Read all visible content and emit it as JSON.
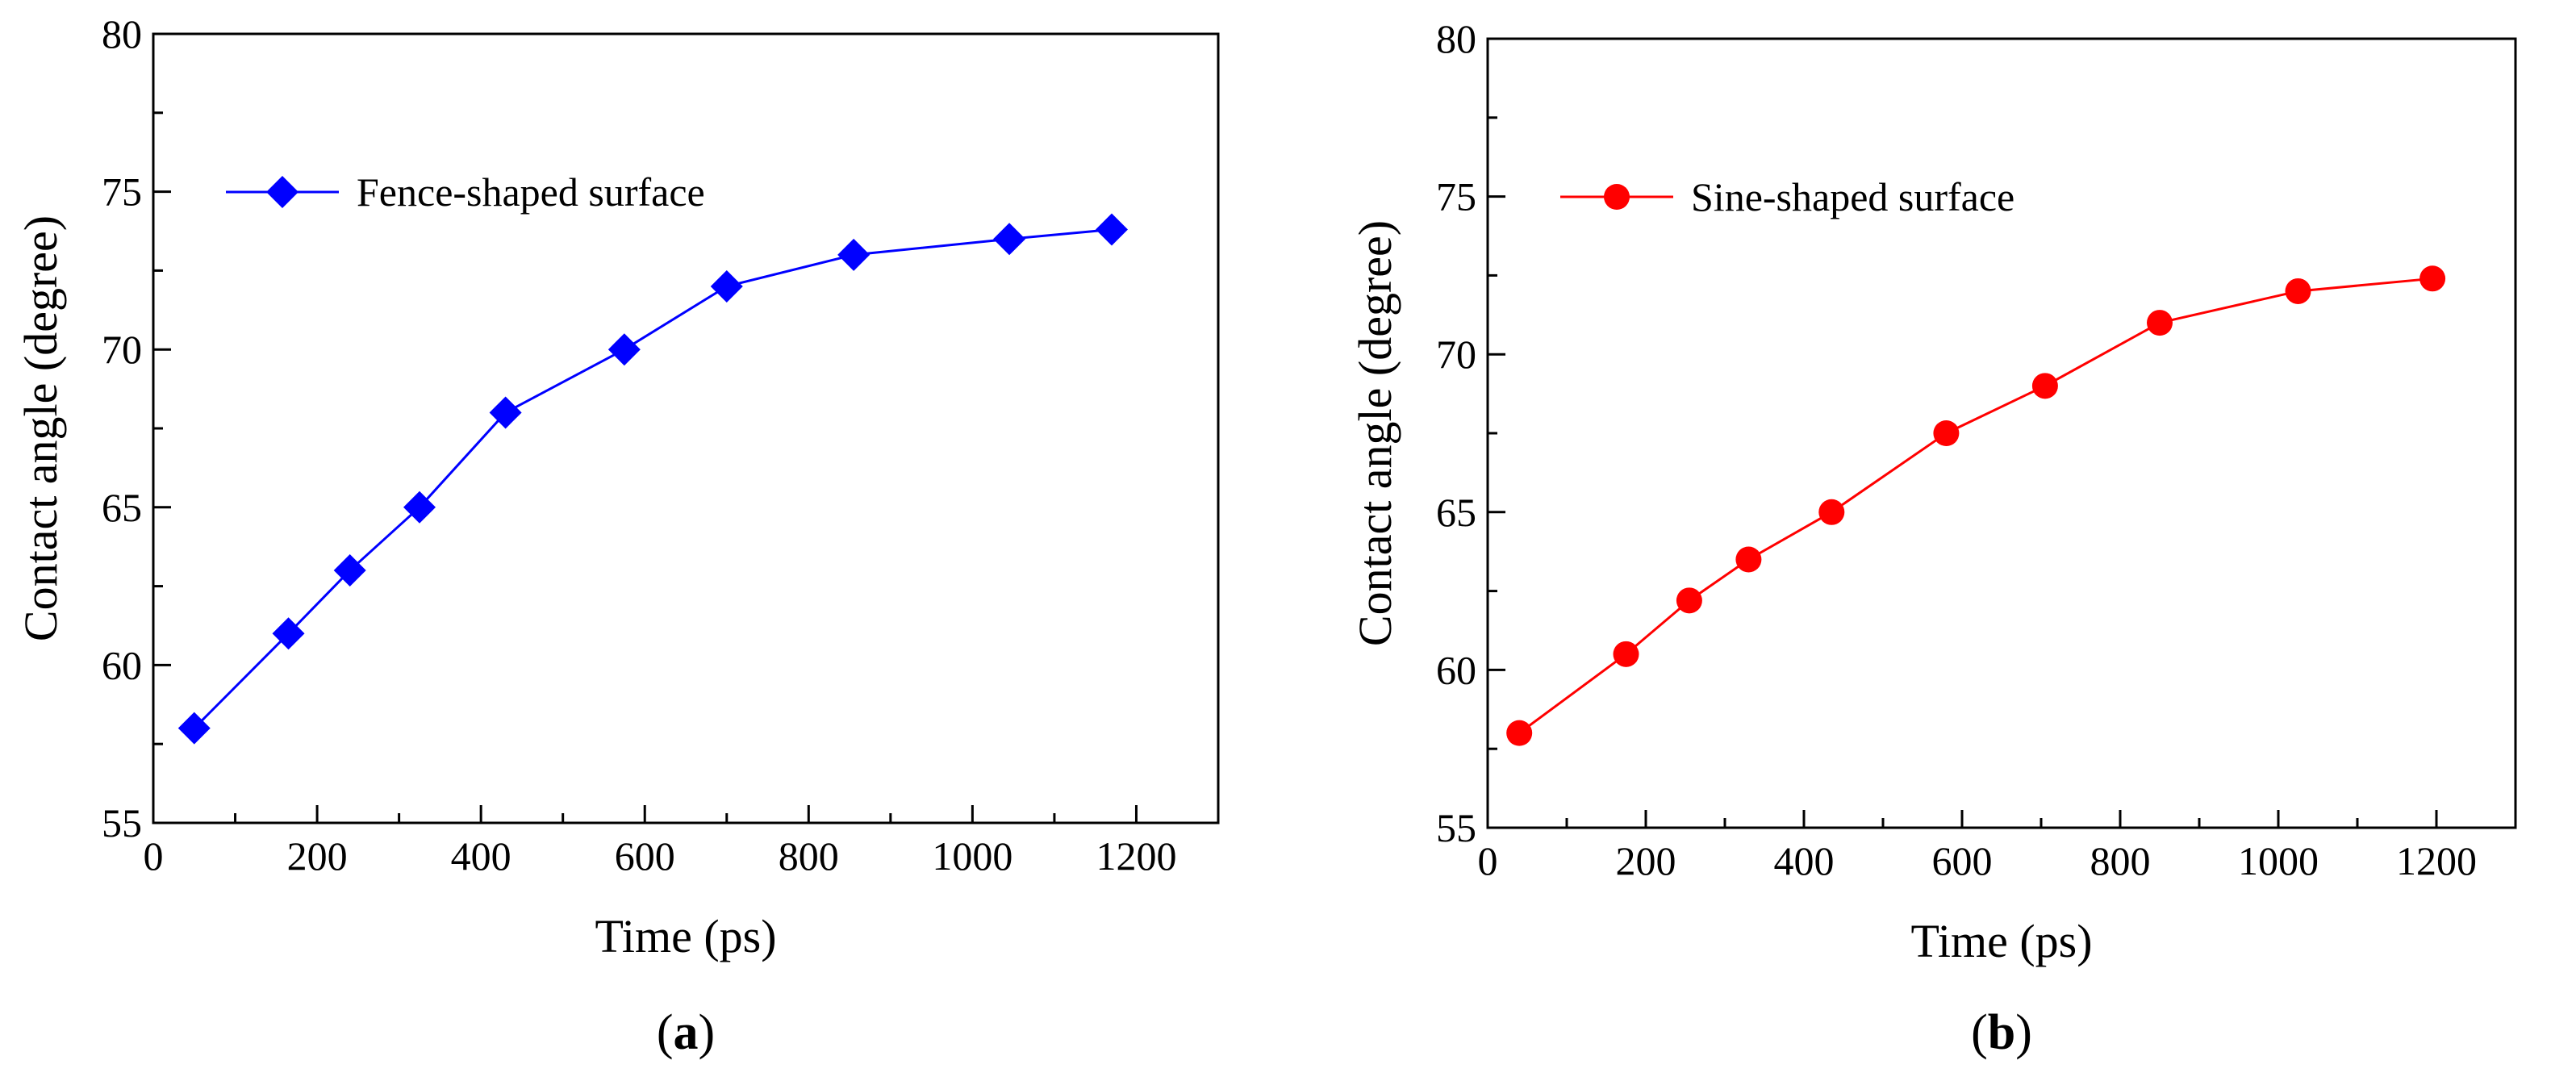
{
  "chart_data": [
    {
      "type": "line",
      "panel_label": "a",
      "title": "",
      "xlabel": "Time (ps)",
      "ylabel": "Contact angle (degree)",
      "xlim": [
        0,
        1300
      ],
      "ylim": [
        55,
        80
      ],
      "xticks": [
        0,
        200,
        400,
        600,
        800,
        1000,
        1200
      ],
      "yticks": [
        55,
        60,
        65,
        70,
        75,
        80
      ],
      "legend_position": "upper-left",
      "series": [
        {
          "name": "Fence-shaped surface",
          "color": "#0000ff",
          "marker": "diamond",
          "x": [
            50,
            165,
            240,
            325,
            430,
            575,
            700,
            855,
            1045,
            1170
          ],
          "y": [
            58,
            61,
            63,
            65,
            68,
            70,
            72,
            73,
            73.5,
            73.8
          ]
        }
      ]
    },
    {
      "type": "line",
      "panel_label": "b",
      "title": "",
      "xlabel": "Time (ps)",
      "ylabel": "Contact angle (degree)",
      "xlim": [
        0,
        1300
      ],
      "ylim": [
        55,
        80
      ],
      "xticks": [
        0,
        200,
        400,
        600,
        800,
        1000,
        1200
      ],
      "yticks": [
        55,
        60,
        65,
        70,
        75,
        80
      ],
      "legend_position": "upper-left",
      "series": [
        {
          "name": "Sine-shaped surface",
          "color": "#ff0000",
          "marker": "circle",
          "x": [
            40,
            175,
            255,
            330,
            435,
            580,
            705,
            850,
            1025,
            1195
          ],
          "y": [
            58,
            60.5,
            62.2,
            63.5,
            65,
            67.5,
            69,
            71,
            72,
            72.4
          ]
        }
      ]
    }
  ]
}
